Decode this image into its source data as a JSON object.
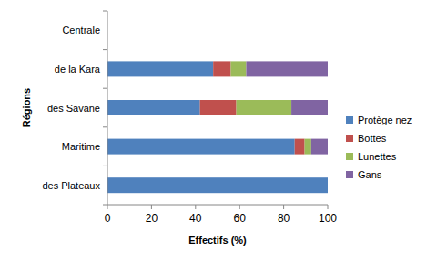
{
  "chart_data": {
    "type": "bar",
    "orientation": "horizontal",
    "stacked": true,
    "x_label": "Effectifs (%)",
    "y_label": "Régions",
    "categories": [
      "des Plateaux",
      "Maritime",
      "des Savane",
      "de la Kara",
      "Centrale"
    ],
    "series": [
      {
        "name": "Protège nez",
        "color": "#4f81bd",
        "values": [
          100,
          85,
          42,
          48,
          null
        ]
      },
      {
        "name": "Bottes",
        "color": "#c0504d",
        "values": [
          0,
          4.5,
          16.5,
          8,
          null
        ]
      },
      {
        "name": "Lunettes",
        "color": "#9bbb59",
        "values": [
          0,
          3,
          25,
          7,
          null
        ]
      },
      {
        "name": "Gans",
        "color": "#8064a2",
        "values": [
          0,
          7.5,
          16.5,
          37,
          null
        ]
      }
    ],
    "xlim": [
      0,
      100
    ],
    "xticks": [
      0,
      20,
      40,
      60,
      80,
      100
    ],
    "grid": false,
    "legend": "right"
  }
}
